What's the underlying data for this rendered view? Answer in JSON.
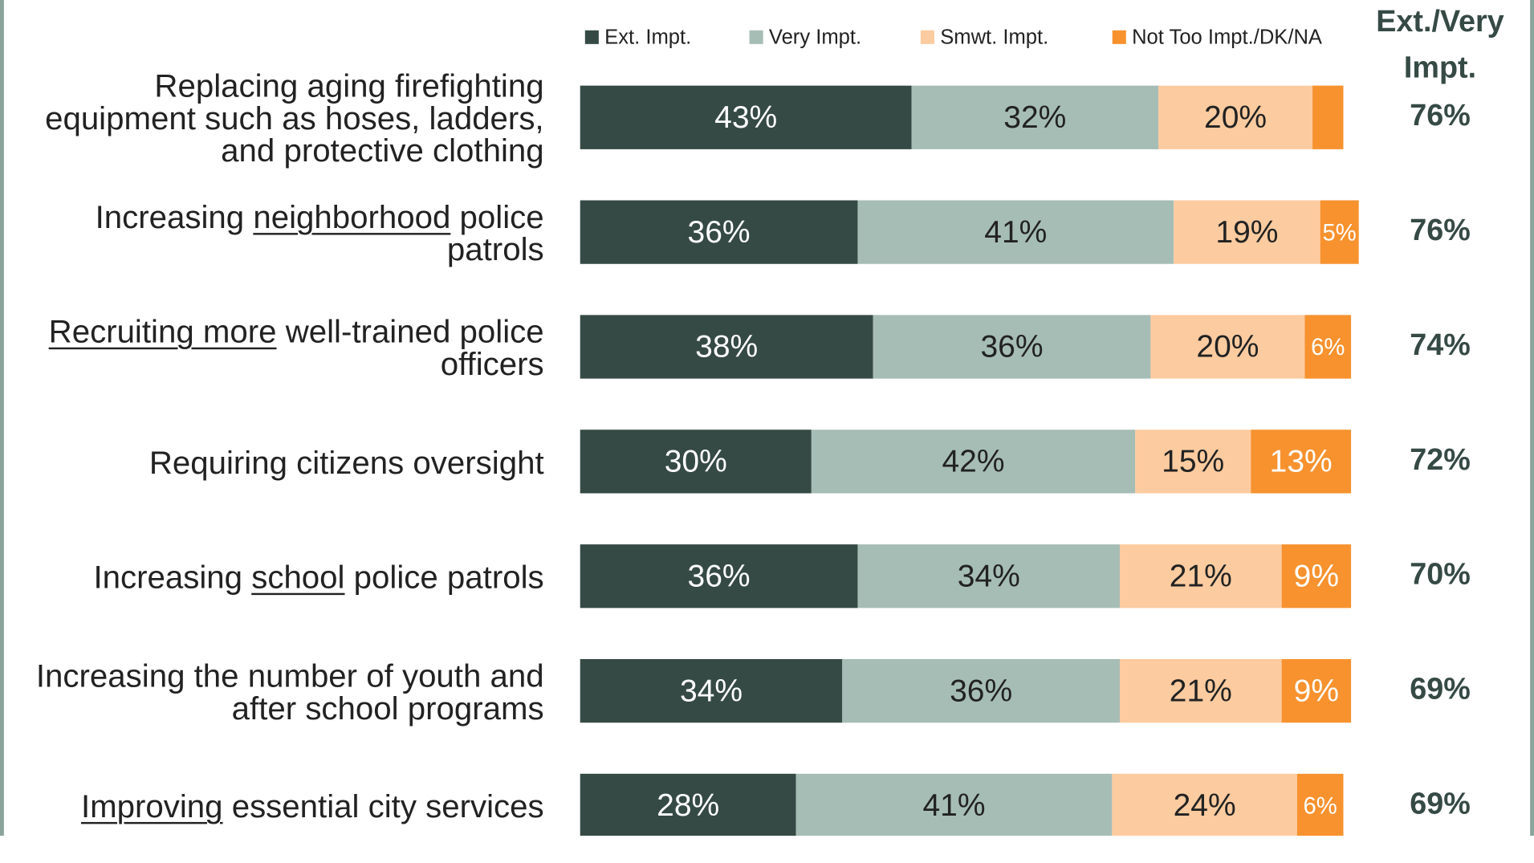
{
  "chart_data": {
    "type": "stacked-barh",
    "categories": [
      "Replacing aging firefighting equipment such as hoses, ladders, and protective clothing",
      "Increasing neighborhood police patrols",
      "Recruiting more well-trained police officers",
      "Requiring citizens oversight",
      "Increasing school police patrols",
      "Increasing the number of youth and after school programs",
      "Improving essential city services"
    ],
    "underlined": [
      null,
      "neighborhood",
      "Recruiting more",
      null,
      "school",
      null,
      "Improving"
    ],
    "xlim": [
      0,
      100
    ],
    "series": [
      {
        "name": "Ext. Impt.",
        "color": "#364a45",
        "values": [
          43,
          36,
          38,
          30,
          36,
          34,
          28
        ],
        "value_labels": [
          "43%",
          "36%",
          "38%",
          "30%",
          "36%",
          "34%",
          "28%"
        ]
      },
      {
        "name": "Very Impt.",
        "color": "#a6bdb6",
        "values": [
          32,
          41,
          36,
          42,
          34,
          36,
          41
        ],
        "value_labels": [
          "32%",
          "41%",
          "36%",
          "42%",
          "34%",
          "36%",
          "41%"
        ]
      },
      {
        "name": "Smwt. Impt.",
        "color": "#fdcba0",
        "values": [
          20,
          19,
          20,
          15,
          21,
          21,
          24
        ],
        "value_labels": [
          "20%",
          "19%",
          "20%",
          "15%",
          "21%",
          "21%",
          "24%"
        ]
      },
      {
        "name": "Not Too Impt./DK/NA",
        "color": "#f7922f",
        "values": [
          4,
          5,
          6,
          13,
          9,
          9,
          6
        ],
        "value_labels": [
          null,
          "5%",
          "6%",
          "13%",
          "9%",
          "9%",
          "6%"
        ]
      }
    ],
    "totals": {
      "title_lines": [
        "Ext./Very",
        "Impt."
      ],
      "values": [
        76,
        76,
        74,
        72,
        70,
        69,
        69
      ],
      "value_labels": [
        "76%",
        "76%",
        "74%",
        "72%",
        "70%",
        "69%",
        "69%"
      ]
    }
  }
}
